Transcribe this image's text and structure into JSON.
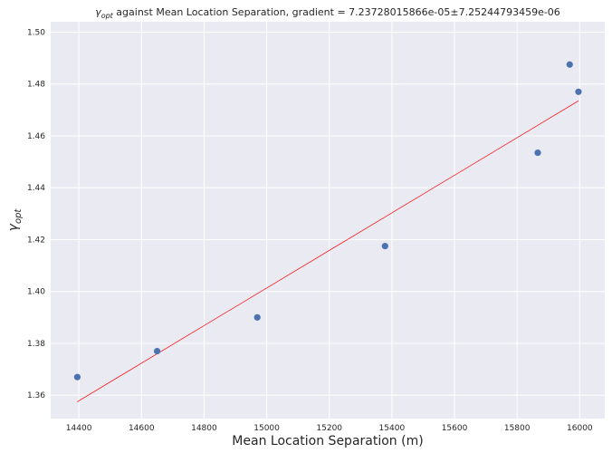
{
  "chart_data": {
    "type": "scatter",
    "title": {
      "symbol": "γ",
      "subscript": "opt",
      "text": " against Mean Location Separation, gradient  = 7.23728015866e-05±7.25244793459e-06"
    },
    "xlabel": "Mean Location Separation (m)",
    "ylabel": {
      "symbol": "γ",
      "subscript": "opt"
    },
    "xlim": [
      14310,
      16080
    ],
    "ylim": [
      1.351,
      1.504
    ],
    "xticks": [
      14400,
      14600,
      14800,
      15000,
      15200,
      15400,
      15600,
      15800,
      16000
    ],
    "yticks": [
      1.36,
      1.38,
      1.4,
      1.42,
      1.44,
      1.46,
      1.48,
      1.5
    ],
    "xtick_labels": [
      "14400",
      "14600",
      "14800",
      "15000",
      "15200",
      "15400",
      "15600",
      "15800",
      "16000"
    ],
    "ytick_labels": [
      "1.36",
      "1.38",
      "1.40",
      "1.42",
      "1.44",
      "1.46",
      "1.48",
      "1.50"
    ],
    "grid": true,
    "series": [
      {
        "type": "scatter",
        "color": "#4c72b0",
        "x": [
          14395,
          14650,
          14970,
          15378,
          15866,
          15968,
          15996
        ],
        "y": [
          1.367,
          1.377,
          1.39,
          1.4175,
          1.4535,
          1.4875,
          1.477
        ]
      },
      {
        "type": "line",
        "color": "#ff0000",
        "x": [
          14395,
          15996
        ],
        "y": [
          1.3575,
          1.4735
        ]
      }
    ]
  },
  "style": {
    "plot_background": "#eaeaf2",
    "grid_color": "#ffffff",
    "text_color": "#262626"
  }
}
